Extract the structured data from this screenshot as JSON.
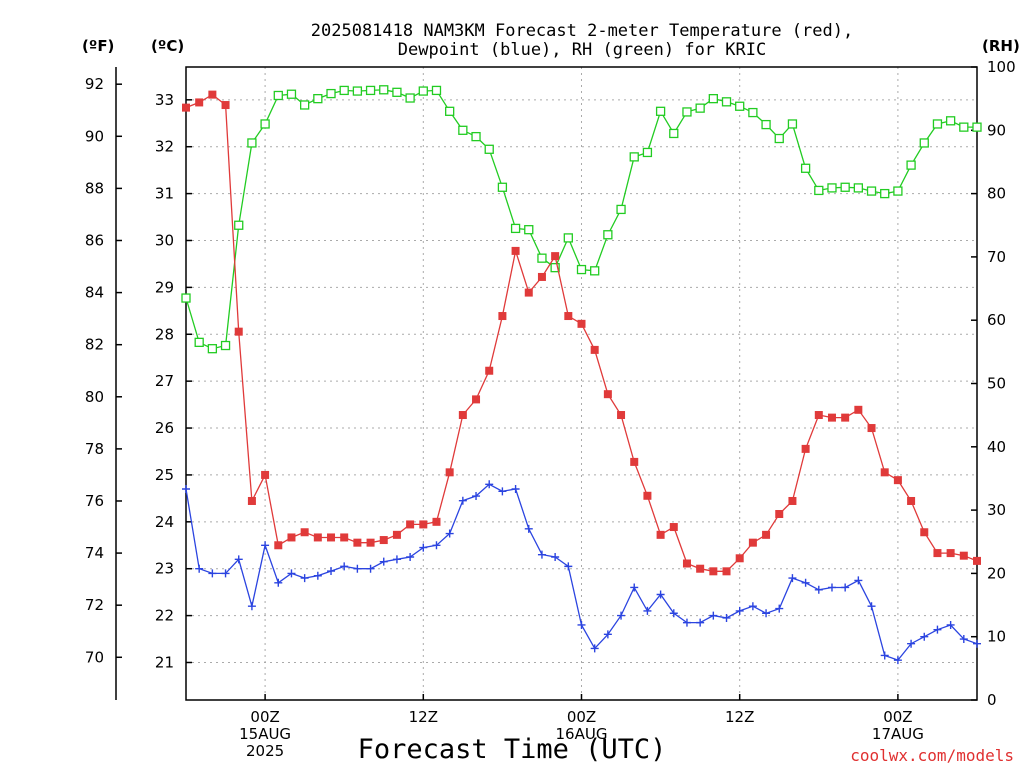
{
  "header": {
    "title_line1": "2025081418 NAM3KM Forecast 2-meter Temperature (red),",
    "title_line2": "Dewpoint (blue), RH (green) for KRIC"
  },
  "units": {
    "fahrenheit": "(ºF)",
    "celsius": "(ºC)",
    "rh": "(RH)"
  },
  "axes": {
    "fahrenheit_ticks": [
      "70",
      "72",
      "74",
      "76",
      "78",
      "80",
      "82",
      "84",
      "86",
      "88",
      "90",
      "92"
    ],
    "celsius_ticks": [
      "21",
      "22",
      "23",
      "24",
      "25",
      "26",
      "27",
      "28",
      "29",
      "30",
      "31",
      "32",
      "33"
    ],
    "rh_ticks": [
      "0",
      "10",
      "20",
      "30",
      "40",
      "50",
      "60",
      "70",
      "80",
      "90",
      "100"
    ],
    "x_ticks": [
      {
        "hour": 6,
        "l1": "00Z",
        "l2": "15AUG",
        "l3": "2025"
      },
      {
        "hour": 18,
        "l1": "12Z",
        "l2": "",
        "l3": ""
      },
      {
        "hour": 30,
        "l1": "00Z",
        "l2": "16AUG",
        "l3": ""
      },
      {
        "hour": 42,
        "l1": "12Z",
        "l2": "",
        "l3": ""
      },
      {
        "hour": 54,
        "l1": "00Z",
        "l2": "17AUG",
        "l3": ""
      }
    ]
  },
  "xlabel": "Forecast Time (UTC)",
  "credit": "coolwx.com/models",
  "chart_data": {
    "type": "line",
    "x_unit": "forecast hour from 2025-08-14 18Z",
    "xlim": [
      0,
      60
    ],
    "ylim_celsius": [
      20.2,
      33.7
    ],
    "ylim_fahrenheit": [
      68.36,
      92.66
    ],
    "ylim_rh": [
      0,
      100
    ],
    "grid": true,
    "series": [
      {
        "name": "Temperature",
        "axis": "fahrenheit",
        "color": "#e03a3a",
        "marker": "filled-square",
        "x": [
          0,
          1,
          2,
          3,
          4,
          5,
          6,
          7,
          8,
          9,
          10,
          11,
          12,
          13,
          14,
          15,
          16,
          17,
          18,
          19,
          20,
          21,
          22,
          23,
          24,
          25,
          26,
          27,
          28,
          29,
          30,
          31,
          32,
          33,
          34,
          35,
          36,
          37,
          38,
          39,
          40,
          41,
          42,
          43,
          44,
          45,
          46,
          47,
          48,
          49,
          50,
          51,
          52,
          53,
          54,
          55,
          56,
          57,
          58,
          59,
          60
        ],
        "values": [
          91.1,
          91.3,
          91.6,
          91.2,
          82.5,
          76.0,
          77.0,
          74.3,
          74.6,
          74.8,
          74.6,
          74.6,
          74.6,
          74.4,
          74.4,
          74.5,
          74.7,
          75.1,
          75.1,
          75.2,
          77.1,
          79.3,
          79.9,
          81.0,
          83.1,
          85.6,
          84.0,
          84.6,
          85.4,
          83.1,
          82.8,
          81.8,
          80.1,
          79.3,
          77.5,
          76.2,
          74.7,
          75.0,
          73.6,
          73.4,
          73.3,
          73.3,
          73.8,
          74.4,
          74.7,
          75.5,
          76.0,
          78.0,
          79.3,
          79.2,
          79.2,
          79.5,
          78.8,
          77.1,
          76.8,
          76.0,
          74.8,
          74.0,
          74.0,
          73.9,
          73.7
        ]
      },
      {
        "name": "Dewpoint",
        "axis": "celsius",
        "color": "#2b44e0",
        "marker": "plus",
        "x": [
          0,
          1,
          2,
          3,
          4,
          5,
          6,
          7,
          8,
          9,
          10,
          11,
          12,
          13,
          14,
          15,
          16,
          17,
          18,
          19,
          20,
          21,
          22,
          23,
          24,
          25,
          26,
          27,
          28,
          29,
          30,
          31,
          32,
          33,
          34,
          35,
          36,
          37,
          38,
          39,
          40,
          41,
          42,
          43,
          44,
          45,
          46,
          47,
          48,
          49,
          50,
          51,
          52,
          53,
          54,
          55,
          56,
          57,
          58,
          59,
          60
        ],
        "values": [
          24.7,
          23.0,
          22.9,
          22.9,
          23.2,
          22.2,
          23.5,
          22.7,
          22.9,
          22.8,
          22.85,
          22.95,
          23.05,
          23.0,
          23.0,
          23.15,
          23.2,
          23.25,
          23.45,
          23.5,
          23.75,
          24.45,
          24.55,
          24.8,
          24.65,
          24.7,
          23.85,
          23.3,
          23.25,
          23.05,
          21.8,
          21.3,
          21.6,
          22.0,
          22.6,
          22.1,
          22.45,
          22.05,
          21.85,
          21.85,
          22.0,
          21.95,
          22.1,
          22.2,
          22.05,
          22.15,
          22.8,
          22.7,
          22.55,
          22.6,
          22.6,
          22.75,
          22.2,
          21.15,
          21.05,
          21.4,
          21.55,
          21.7,
          21.8,
          21.5,
          21.4
        ]
      },
      {
        "name": "RH",
        "axis": "rh",
        "color": "#22cc22",
        "marker": "open-square",
        "x": [
          0,
          1,
          2,
          3,
          4,
          5,
          6,
          7,
          8,
          9,
          10,
          11,
          12,
          13,
          14,
          15,
          16,
          17,
          18,
          19,
          20,
          21,
          22,
          23,
          24,
          25,
          26,
          27,
          28,
          29,
          30,
          31,
          32,
          33,
          34,
          35,
          36,
          37,
          38,
          39,
          40,
          41,
          42,
          43,
          44,
          45,
          46,
          47,
          48,
          49,
          50,
          51,
          52,
          53,
          54,
          55,
          56,
          57,
          58,
          59,
          60
        ],
        "values": [
          63.5,
          56.5,
          55.5,
          56.0,
          75.0,
          88.0,
          91.0,
          95.5,
          95.7,
          94.0,
          95.0,
          95.8,
          96.3,
          96.2,
          96.3,
          96.4,
          96.0,
          95.1,
          96.2,
          96.3,
          93.0,
          90.0,
          89.0,
          87.0,
          81.0,
          74.5,
          74.3,
          69.8,
          68.3,
          73.0,
          68.0,
          67.8,
          73.5,
          77.5,
          85.8,
          86.5,
          93.0,
          89.5,
          92.9,
          93.5,
          95.0,
          94.5,
          93.8,
          92.8,
          90.9,
          88.7,
          91.0,
          84.0,
          80.5,
          80.9,
          81.0,
          80.9,
          80.4,
          80.0,
          80.4,
          84.5,
          88.0,
          91.0,
          91.5,
          90.5,
          90.5
        ]
      }
    ]
  }
}
